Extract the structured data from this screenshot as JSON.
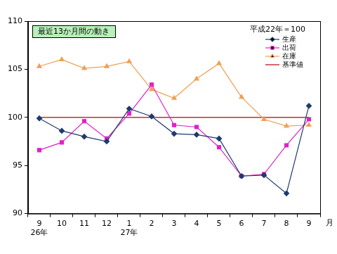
{
  "chart_data": {
    "type": "line",
    "title": "最近13か月間の動き",
    "subtitle": "平成22年＝100",
    "x_label": "月",
    "categories": [
      "9",
      "10",
      "11",
      "12",
      "1",
      "2",
      "3",
      "4",
      "5",
      "6",
      "7",
      "8",
      "9"
    ],
    "category_groups": [
      "26年",
      null,
      null,
      null,
      "27年",
      null,
      null,
      null,
      null,
      null,
      null,
      null,
      null
    ],
    "series": [
      {
        "name": "生産",
        "color": "#1f3a6e",
        "marker": "diamond",
        "line_style": "solid",
        "values": [
          99.9,
          98.6,
          98.0,
          97.5,
          100.9,
          100.1,
          98.3,
          98.2,
          97.8,
          93.9,
          94.0,
          92.1,
          101.2
        ]
      },
      {
        "name": "出荷",
        "color": "#e020c8",
        "marker": "square",
        "line_style": "solid",
        "values": [
          96.6,
          97.4,
          99.6,
          97.8,
          100.4,
          103.4,
          99.2,
          99.0,
          96.9,
          93.9,
          94.1,
          97.1,
          99.8
        ]
      },
      {
        "name": "在庫",
        "color": "#f0a050",
        "marker": "triangle",
        "line_style": "solid",
        "values": [
          105.3,
          106.0,
          105.1,
          105.3,
          105.8,
          102.9,
          102.0,
          104.0,
          105.6,
          102.1,
          99.8,
          99.1,
          99.2
        ]
      },
      {
        "name": "基準値",
        "color": "#c00000",
        "marker": "none",
        "line_style": "solid",
        "values": [
          100,
          100,
          100,
          100,
          100,
          100,
          100,
          100,
          100,
          100,
          100,
          100,
          100
        ]
      }
    ],
    "ylim": [
      90,
      110
    ],
    "yticks": [
      90,
      95,
      100,
      105,
      110
    ],
    "grid": false,
    "legend": "top right"
  }
}
